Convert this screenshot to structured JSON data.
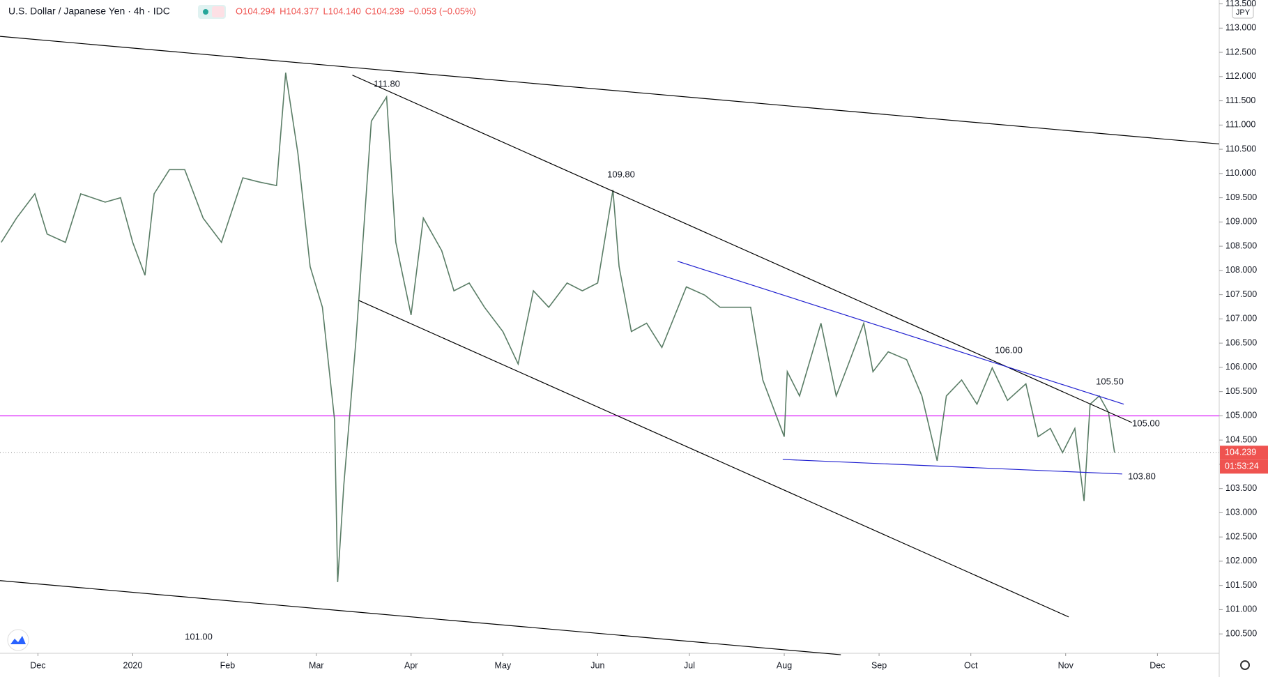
{
  "header": {
    "title": "U.S. Dollar / Japanese Yen · 4h · IDC",
    "ohlc": [
      "O104.294",
      "H104.377",
      "L104.140",
      "C104.239",
      "−0.053 (−0.05%)"
    ],
    "currency": "JPY"
  },
  "chart_data": {
    "type": "line",
    "color": "#5a7d66",
    "x": [
      -12,
      -7,
      -1,
      3,
      9,
      14,
      22,
      27,
      31,
      35,
      38,
      43,
      48,
      54,
      60,
      67,
      72,
      78,
      81,
      85,
      89,
      93,
      97,
      98,
      100,
      104,
      109,
      114,
      117,
      122,
      126,
      132,
      136,
      141,
      146,
      152,
      157,
      162,
      167,
      173,
      178,
      183,
      188,
      190,
      194,
      199,
      204,
      212,
      218,
      223,
      228,
      233,
      237,
      244,
      245,
      249,
      256,
      261,
      265,
      270,
      273,
      278,
      284,
      289,
      294,
      297,
      302,
      307,
      312,
      317,
      323,
      327,
      331,
      335,
      339,
      342,
      344,
      347,
      350,
      352
    ],
    "values": [
      108.58,
      109.08,
      109.58,
      108.75,
      108.58,
      109.58,
      109.41,
      109.5,
      108.58,
      107.9,
      109.58,
      110.08,
      110.08,
      109.08,
      108.58,
      109.91,
      109.83,
      109.75,
      112.08,
      110.41,
      108.08,
      107.24,
      104.91,
      101.57,
      103.57,
      106.57,
      111.08,
      111.58,
      108.58,
      107.08,
      109.08,
      108.41,
      107.58,
      107.74,
      107.24,
      106.74,
      106.07,
      107.58,
      107.24,
      107.74,
      107.58,
      107.74,
      109.66,
      108.08,
      106.74,
      106.91,
      106.41,
      107.66,
      107.49,
      107.24,
      107.24,
      107.24,
      105.74,
      104.57,
      105.91,
      105.41,
      106.91,
      105.41,
      106.07,
      106.91,
      105.91,
      106.32,
      106.16,
      105.41,
      104.07,
      105.41,
      105.74,
      105.24,
      105.99,
      105.32,
      105.66,
      104.57,
      104.74,
      104.24,
      104.74,
      103.24,
      105.24,
      105.41,
      105.07,
      104.239
    ],
    "xlim": [
      -12.4,
      386.2
    ],
    "xticks": [
      {
        "value": 0,
        "label": "Dec"
      },
      {
        "value": 31,
        "label": "2020"
      },
      {
        "value": 62,
        "label": "Feb"
      },
      {
        "value": 91,
        "label": "Mar"
      },
      {
        "value": 122,
        "label": "Apr"
      },
      {
        "value": 152,
        "label": "May"
      },
      {
        "value": 183,
        "label": "Jun"
      },
      {
        "value": 213,
        "label": "Jul"
      },
      {
        "value": 244,
        "label": "Aug"
      },
      {
        "value": 275,
        "label": "Sep"
      },
      {
        "value": 305,
        "label": "Oct"
      },
      {
        "value": 336,
        "label": "Nov"
      },
      {
        "value": 366,
        "label": "Dec"
      }
    ],
    "ylim": [
      100.1,
      113.58
    ],
    "yticks": [
      {
        "value": 100.5,
        "label": "100.500"
      },
      {
        "value": 101,
        "label": "101.000"
      },
      {
        "value": 101.5,
        "label": "101.500"
      },
      {
        "value": 102,
        "label": "102.000"
      },
      {
        "value": 102.5,
        "label": "102.500"
      },
      {
        "value": 103,
        "label": "103.000"
      },
      {
        "value": 103.5,
        "label": "103.500"
      },
      {
        "value": 104,
        "label": "104.000"
      },
      {
        "value": 104.5,
        "label": "104.500"
      },
      {
        "value": 105,
        "label": "105.000"
      },
      {
        "value": 105.5,
        "label": "105.500"
      },
      {
        "value": 106,
        "label": "106.000"
      },
      {
        "value": 106.5,
        "label": "106.500"
      },
      {
        "value": 107,
        "label": "107.000"
      },
      {
        "value": 107.5,
        "label": "107.500"
      },
      {
        "value": 108,
        "label": "108.000"
      },
      {
        "value": 108.5,
        "label": "108.500"
      },
      {
        "value": 109,
        "label": "109.000"
      },
      {
        "value": 109.5,
        "label": "109.500"
      },
      {
        "value": 110,
        "label": "110.000"
      },
      {
        "value": 110.5,
        "label": "110.500"
      },
      {
        "value": 111,
        "label": "111.000"
      },
      {
        "value": 111.5,
        "label": "111.500"
      },
      {
        "value": 112,
        "label": "112.000"
      },
      {
        "value": 112.5,
        "label": "112.500"
      },
      {
        "value": 113,
        "label": "113.000"
      },
      {
        "value": 113.5,
        "label": "113.500"
      }
    ],
    "trendlines": [
      {
        "color": "#000000",
        "x": [
          -12.4,
          386.2
        ],
        "y": [
          112.83,
          110.61
        ]
      },
      {
        "color": "#000000",
        "x": [
          102.8,
          357.7
        ],
        "y": [
          112.03,
          104.86
        ]
      },
      {
        "color": "#000000",
        "x": [
          104.9,
          337.0
        ],
        "y": [
          107.38,
          100.85
        ]
      },
      {
        "color": "#000000",
        "x": [
          -12.4,
          262.5
        ],
        "y": [
          101.6,
          100.07
        ]
      },
      {
        "color": "#2020d0",
        "x": [
          209.1,
          355.0
        ],
        "y": [
          108.19,
          105.24
        ]
      },
      {
        "color": "#2020d0",
        "x": [
          243.5,
          354.5
        ],
        "y": [
          104.1,
          103.8
        ]
      }
    ],
    "hline": {
      "value": 105.0,
      "color": "#e040fb"
    },
    "last_price": 104.239,
    "last_price_label": "104.239",
    "countdown": "01:53:24",
    "annotations": [
      "111.80",
      "109.80",
      "106.00",
      "105.50",
      "105.00",
      "103.80",
      "101.00"
    ]
  }
}
